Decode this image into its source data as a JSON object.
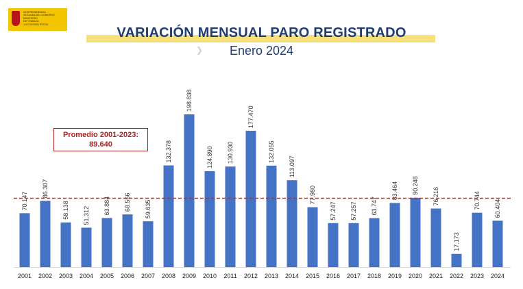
{
  "header": {
    "title": "VARIACIÓN MENSUAL PARO REGISTRADO",
    "subtitle": "Enero 2024",
    "logo_lines": "VICEPRESIDENCIA\nSEGUNDA DEL GOBIERNO\nMINISTERIO\nDE TRABAJO\nY ECONOMÍA SOCIAL",
    "logo_icon": "spain-coat-of-arms-icon"
  },
  "colors": {
    "bar": "#4472c4",
    "average_line": "#c0302f",
    "title": "#1f3d73",
    "title_highlight": "#f6e07a"
  },
  "average": {
    "label": "Promedio 2001-2023:",
    "value_text": "89.640",
    "value": 89640
  },
  "chart_data": {
    "type": "bar",
    "title": "VARIACIÓN MENSUAL PARO REGISTRADO",
    "subtitle": "Enero 2024",
    "categories": [
      "2001",
      "2002",
      "2003",
      "2004",
      "2005",
      "2006",
      "2007",
      "2008",
      "2009",
      "2010",
      "2011",
      "2012",
      "2013",
      "2014",
      "2015",
      "2016",
      "2017",
      "2018",
      "2019",
      "2020",
      "2021",
      "2022",
      "2023",
      "2024"
    ],
    "values": [
      70147,
      86307,
      58138,
      51312,
      63884,
      68566,
      59635,
      132378,
      198838,
      124890,
      130930,
      177470,
      132055,
      113097,
      77980,
      57247,
      57257,
      63747,
      83464,
      90248,
      76216,
      17173,
      70744,
      60404
    ],
    "labels": [
      "70.147",
      "86.307",
      "58.138",
      "51.312",
      "63.884",
      "68.566",
      "59.635",
      "132.378",
      "198.838",
      "124.890",
      "130.930",
      "177.470",
      "132.055",
      "113.097",
      "77.980",
      "57.247",
      "57.257",
      "63.747",
      "83.464",
      "90.248",
      "76.216",
      "17.173",
      "70.744",
      "60.404"
    ],
    "reference_line": {
      "label": "Promedio 2001-2023:",
      "value": 89640,
      "style": "dashed"
    },
    "xlabel": "",
    "ylabel": "",
    "ylim": [
      0,
      200000
    ],
    "grid": false,
    "legend": "none"
  }
}
